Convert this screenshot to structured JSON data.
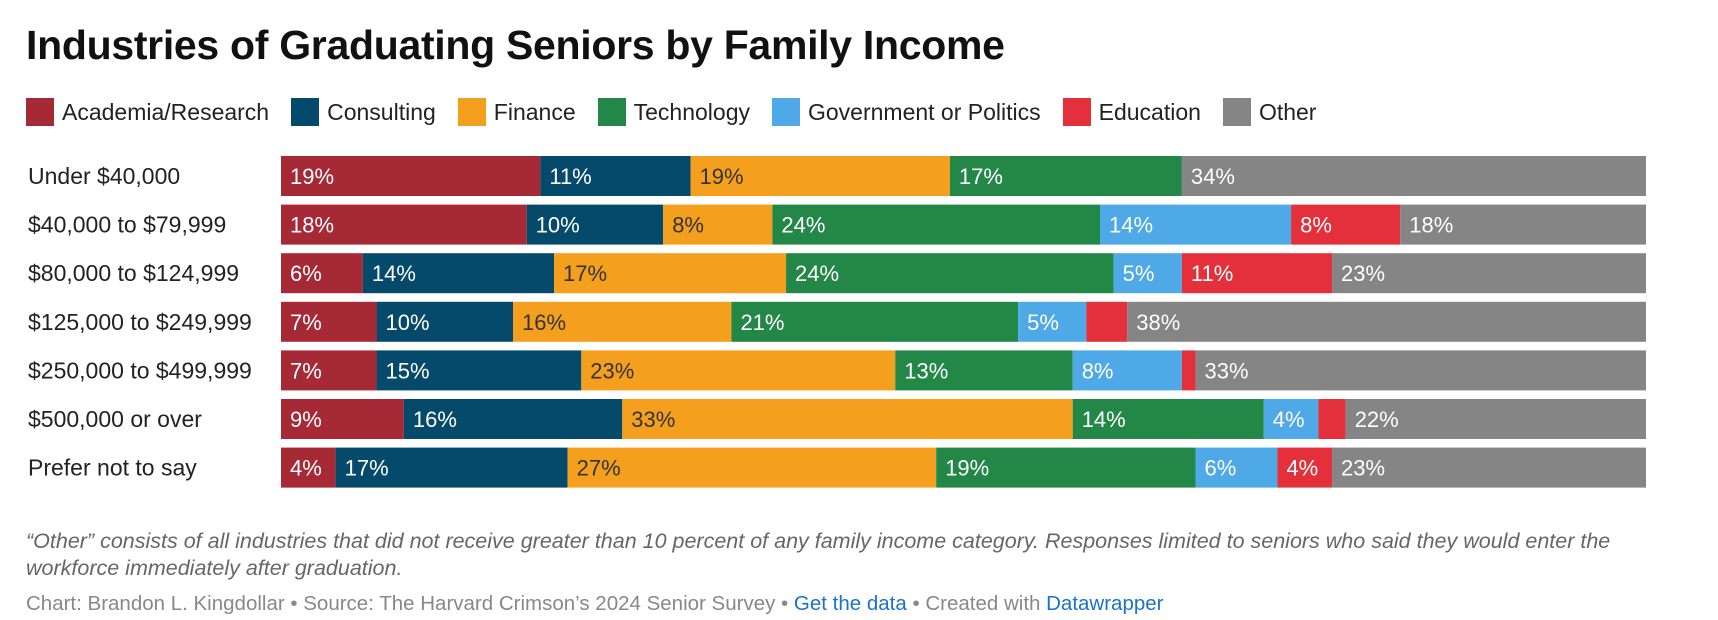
{
  "chart_data": {
    "type": "bar",
    "orientation": "horizontal",
    "stacked": true,
    "title": "Industries of Graduating Seniors by Family Income",
    "categories": [
      "Under $40,000",
      "$40,000 to $79,999",
      "$80,000 to $124,999",
      "$125,000 to $249,999",
      "$250,000 to $499,999",
      "$500,000 or over",
      "Prefer not to say"
    ],
    "legend_position": "top-left",
    "grid": false,
    "xlim": [
      0,
      100
    ],
    "series": [
      {
        "name": "Academia/Research",
        "color": "#a52a36",
        "values": [
          19,
          18,
          6,
          7,
          7,
          9,
          4
        ],
        "labels": [
          "19%",
          "18%",
          "6%",
          "7%",
          "7%",
          "9%",
          "4%"
        ]
      },
      {
        "name": "Consulting",
        "color": "#054a6b",
        "values": [
          11,
          10,
          14,
          10,
          15,
          16,
          17
        ],
        "labels": [
          "11%",
          "10%",
          "14%",
          "10%",
          "15%",
          "16%",
          "17%"
        ]
      },
      {
        "name": "Finance",
        "color": "#f59f1e",
        "values": [
          19,
          8,
          17,
          16,
          23,
          33,
          27
        ],
        "labels": [
          "19%",
          "8%",
          "17%",
          "16%",
          "23%",
          "33%",
          "27%"
        ]
      },
      {
        "name": "Technology",
        "color": "#238747",
        "values": [
          17,
          24,
          24,
          21,
          13,
          14,
          19
        ],
        "labels": [
          "17%",
          "24%",
          "24%",
          "21%",
          "13%",
          "14%",
          "19%"
        ]
      },
      {
        "name": "Government or Politics",
        "color": "#4ea9e6",
        "values": [
          0,
          14,
          5,
          5,
          8,
          4,
          6
        ],
        "labels": [
          "",
          "14%",
          "5%",
          "5%",
          "8%",
          "4%",
          "6%"
        ]
      },
      {
        "name": "Education",
        "color": "#e3303a",
        "values": [
          0,
          8,
          11,
          3,
          1,
          2,
          4
        ],
        "labels": [
          "",
          "8%",
          "11%",
          "",
          "",
          "",
          "4%"
        ]
      },
      {
        "name": "Other",
        "color": "#858585",
        "values": [
          34,
          18,
          23,
          38,
          33,
          22,
          23
        ],
        "labels": [
          "34%",
          "18%",
          "23%",
          "38%",
          "33%",
          "22%",
          "23%"
        ]
      }
    ]
  },
  "note": "“Other” consists of all industries that did not receive greater than 10 percent of any family income category. Responses limited to seniors who said they would enter the workforce immediately after graduation.",
  "credits": {
    "prefix": "Chart: Brandon L. Kingdollar • Source: The Harvard Crimson’s 2024 Senior Survey • ",
    "get_data": "Get the data",
    "middle": " • Created with ",
    "datawrapper": "Datawrapper"
  }
}
